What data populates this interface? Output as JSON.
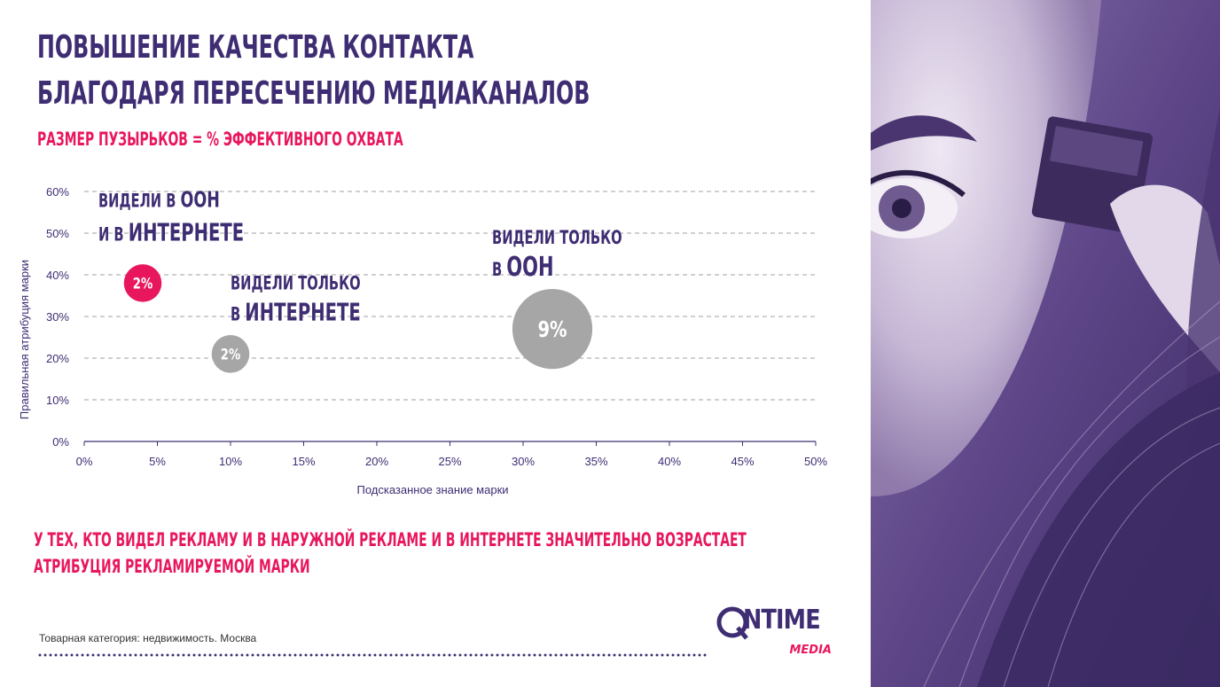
{
  "slide": {
    "title_line1": "ПОВЫШЕНИЕ КАЧЕСТВА КОНТАКТА",
    "title_line2": "БЛАГОДАРЯ ПЕРЕСЕЧЕНИЮ МЕДИАКАНАЛОВ",
    "subtitle": "РАЗМЕР ПУЗЫРЬКОВ = % ЭФФЕКТИВНОГО ОХВАТА",
    "conclusion_line1": "У ТЕХ, КТО ВИДЕЛ РЕКЛАМУ И В НАРУЖНОЙ РЕКЛАМЕ И В ИНТЕРНЕТЕ ЗНАЧИТЕЛЬНО ВОЗРАСТАЕТ",
    "conclusion_line2": "АТРИБУЦИЯ РЕКЛАМИРУЕМОЙ МАРКИ",
    "footnote": "Товарная категория: недвижимость. Москва"
  },
  "logo": {
    "main": "NTIME",
    "sub": "MEDIA"
  },
  "colors": {
    "primary": "#3f2d73",
    "accent": "#e8175d",
    "bubble_grey": "#a6a6a6",
    "photo_tint": "#6b4f96"
  },
  "chart_data": {
    "type": "scatter",
    "xlabel": "Подсказанное знание марки",
    "ylabel": "Правильная атрибуция марки",
    "xlim": [
      0,
      50
    ],
    "ylim": [
      0,
      60
    ],
    "x_ticks": [
      "0%",
      "5%",
      "10%",
      "15%",
      "20%",
      "25%",
      "30%",
      "35%",
      "40%",
      "45%",
      "50%"
    ],
    "y_ticks": [
      "0%",
      "10%",
      "20%",
      "30%",
      "40%",
      "50%",
      "60%"
    ],
    "grid": true,
    "points": [
      {
        "x": 4,
        "y": 38,
        "size": 2,
        "label": "2%",
        "color": "#e8175d",
        "annotation_line1_small": "ВИДЕЛИ В",
        "annotation_line1_big": "OOH",
        "annotation_line2_small": "И В",
        "annotation_line2_big": "ИНТЕРНЕТЕ"
      },
      {
        "x": 10,
        "y": 21,
        "size": 2,
        "label": "2%",
        "color": "#a6a6a6",
        "annotation_line1_small": "ВИДЕЛИ ТОЛЬКО",
        "annotation_line1_big": "",
        "annotation_line2_small": "В",
        "annotation_line2_big": "ИНТЕРНЕТЕ"
      },
      {
        "x": 32,
        "y": 27,
        "size": 9,
        "label": "9%",
        "color": "#a6a6a6",
        "annotation_line1_small": "ВИДЕЛИ ТОЛЬКО",
        "annotation_line1_big": "",
        "annotation_line2_small": "В",
        "annotation_line2_big": "OOH"
      }
    ]
  }
}
